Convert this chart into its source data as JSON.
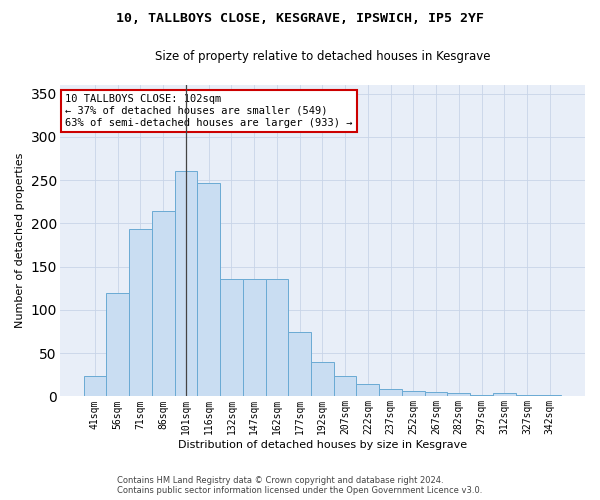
{
  "title_line1": "10, TALLBOYS CLOSE, KESGRAVE, IPSWICH, IP5 2YF",
  "title_line2": "Size of property relative to detached houses in Kesgrave",
  "xlabel": "Distribution of detached houses by size in Kesgrave",
  "ylabel": "Number of detached properties",
  "categories": [
    "41sqm",
    "56sqm",
    "71sqm",
    "86sqm",
    "101sqm",
    "116sqm",
    "132sqm",
    "147sqm",
    "162sqm",
    "177sqm",
    "192sqm",
    "207sqm",
    "222sqm",
    "237sqm",
    "252sqm",
    "267sqm",
    "282sqm",
    "297sqm",
    "312sqm",
    "327sqm",
    "342sqm"
  ],
  "values": [
    24,
    120,
    193,
    214,
    261,
    247,
    136,
    136,
    136,
    75,
    40,
    24,
    14,
    8,
    6,
    5,
    4,
    2,
    4,
    2,
    2
  ],
  "bar_color": "#c9ddf2",
  "bar_edge_color": "#6aaad4",
  "highlight_bar_index": 4,
  "highlight_line_color": "#444444",
  "annotation_text": "10 TALLBOYS CLOSE: 102sqm\n← 37% of detached houses are smaller (549)\n63% of semi-detached houses are larger (933) →",
  "annotation_box_color": "#ffffff",
  "annotation_box_edge": "#cc0000",
  "ylim": [
    0,
    360
  ],
  "yticks": [
    0,
    50,
    100,
    150,
    200,
    250,
    300,
    350
  ],
  "grid_color": "#c8d4e8",
  "background_color": "#e8eef8",
  "footer_line1": "Contains HM Land Registry data © Crown copyright and database right 2024.",
  "footer_line2": "Contains public sector information licensed under the Open Government Licence v3.0.",
  "title_fontsize": 9.5,
  "subtitle_fontsize": 8.5,
  "axis_label_fontsize": 8,
  "tick_fontsize": 7,
  "annotation_fontsize": 7.5,
  "footer_fontsize": 6
}
